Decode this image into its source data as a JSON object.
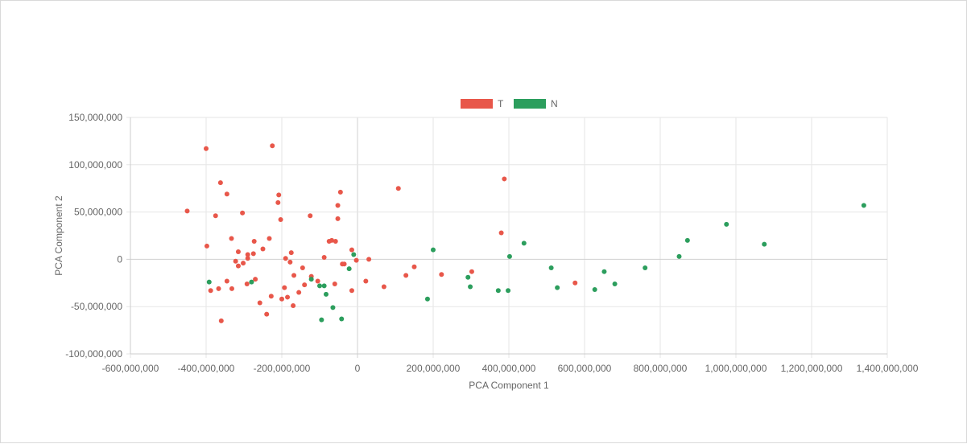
{
  "chart_data": {
    "type": "scatter",
    "xlabel": "PCA Component 1",
    "ylabel": "PCA Component 2",
    "xlim": [
      -600000000,
      1400000000
    ],
    "ylim": [
      -100000000,
      150000000
    ],
    "xticks": [
      -600000000,
      -400000000,
      -200000000,
      0,
      200000000,
      400000000,
      600000000,
      800000000,
      1000000000,
      1200000000,
      1400000000
    ],
    "yticks": [
      -100000000,
      -50000000,
      0,
      50000000,
      100000000,
      150000000
    ],
    "grid": true,
    "legend_position": "top",
    "series": [
      {
        "name": "T",
        "color": "#e8574a",
        "points": [
          [
            -450000000,
            51000000
          ],
          [
            -400000000,
            117000000
          ],
          [
            -398000000,
            14000000
          ],
          [
            -388000000,
            -33000000
          ],
          [
            -375000000,
            46000000
          ],
          [
            -367000000,
            -31000000
          ],
          [
            -362000000,
            81000000
          ],
          [
            -360000000,
            -65000000
          ],
          [
            -345000000,
            69000000
          ],
          [
            -345000000,
            -23000000
          ],
          [
            -333000000,
            22000000
          ],
          [
            -332000000,
            -31000000
          ],
          [
            -322000000,
            -2000000
          ],
          [
            -315000000,
            8000000
          ],
          [
            -315000000,
            -7000000
          ],
          [
            -304000000,
            49000000
          ],
          [
            -302000000,
            -4000000
          ],
          [
            -292000000,
            -26000000
          ],
          [
            -290000000,
            5000000
          ],
          [
            -290000000,
            1000000
          ],
          [
            -275000000,
            6000000
          ],
          [
            -273000000,
            19000000
          ],
          [
            -270000000,
            -21000000
          ],
          [
            -258000000,
            -46000000
          ],
          [
            -250000000,
            11000000
          ],
          [
            -240000000,
            -58000000
          ],
          [
            -233000000,
            22000000
          ],
          [
            -228000000,
            -39000000
          ],
          [
            -225000000,
            120000000
          ],
          [
            -210000000,
            60000000
          ],
          [
            -208000000,
            68000000
          ],
          [
            -203000000,
            42000000
          ],
          [
            -200000000,
            -42000000
          ],
          [
            -193000000,
            -30000000
          ],
          [
            -190000000,
            1000000
          ],
          [
            -185000000,
            -40000000
          ],
          [
            -178000000,
            -3000000
          ],
          [
            -175000000,
            7000000
          ],
          [
            -170000000,
            -49000000
          ],
          [
            -168000000,
            -17000000
          ],
          [
            -155000000,
            -35000000
          ],
          [
            -145000000,
            -9000000
          ],
          [
            -140000000,
            -27000000
          ],
          [
            -125000000,
            46000000
          ],
          [
            -122000000,
            -18000000
          ],
          [
            -105000000,
            -23000000
          ],
          [
            -88000000,
            2000000
          ],
          [
            -75000000,
            19000000
          ],
          [
            -68000000,
            20000000
          ],
          [
            -60000000,
            -26000000
          ],
          [
            -58000000,
            19000000
          ],
          [
            -52000000,
            57000000
          ],
          [
            -52000000,
            43000000
          ],
          [
            -45000000,
            71000000
          ],
          [
            -40000000,
            -5000000
          ],
          [
            -35000000,
            -5000000
          ],
          [
            -15000000,
            10000000
          ],
          [
            -15000000,
            -33000000
          ],
          [
            -3000000,
            -1000000
          ],
          [
            30000000,
            0
          ],
          [
            22000000,
            -23000000
          ],
          [
            70000000,
            -29000000
          ],
          [
            108000000,
            75000000
          ],
          [
            128000000,
            -17000000
          ],
          [
            150000000,
            -8000000
          ],
          [
            222000000,
            -16000000
          ],
          [
            302000000,
            -13000000
          ],
          [
            380000000,
            28000000
          ],
          [
            388000000,
            85000000
          ],
          [
            575000000,
            -25000000
          ]
        ]
      },
      {
        "name": "N",
        "color": "#2c9e5d",
        "points": [
          [
            -392000000,
            -24000000
          ],
          [
            -280000000,
            -24000000
          ],
          [
            -122000000,
            -21000000
          ],
          [
            -100000000,
            -28000000
          ],
          [
            -95000000,
            -64000000
          ],
          [
            -88000000,
            -28000000
          ],
          [
            -83000000,
            -37000000
          ],
          [
            -65000000,
            -51000000
          ],
          [
            -42000000,
            -63000000
          ],
          [
            -22000000,
            -10000000
          ],
          [
            -10000000,
            5000000
          ],
          [
            185000000,
            -42000000
          ],
          [
            200000000,
            10000000
          ],
          [
            292000000,
            -19000000
          ],
          [
            298000000,
            -29000000
          ],
          [
            372000000,
            -33000000
          ],
          [
            398000000,
            -33000000
          ],
          [
            402000000,
            3000000
          ],
          [
            440000000,
            17000000
          ],
          [
            512000000,
            -9000000
          ],
          [
            528000000,
            -30000000
          ],
          [
            627000000,
            -32000000
          ],
          [
            652000000,
            -13000000
          ],
          [
            680000000,
            -26000000
          ],
          [
            760000000,
            -9000000
          ],
          [
            850000000,
            3000000
          ],
          [
            872000000,
            20000000
          ],
          [
            975000000,
            37000000
          ],
          [
            1075000000,
            16000000
          ],
          [
            1338000000,
            57000000
          ]
        ]
      }
    ]
  }
}
